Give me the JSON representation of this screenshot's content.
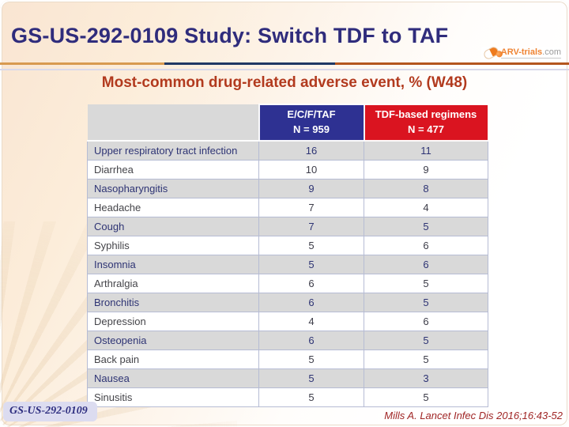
{
  "slide": {
    "title": "GS-US-292-0109 Study: Switch TDF to TAF",
    "subtitle": "Most-common drug-related adverse event, % (W48)",
    "footer_badge": "GS-US-292-0109",
    "citation": "Mills A. Lancet Infec Dis 2016;16:43-52"
  },
  "logo": {
    "name": "ARV-trials",
    "suffix": ".com",
    "icon": "pill-icon"
  },
  "table": {
    "header": {
      "col_event": "",
      "col_ecftaf": {
        "title": "E/C/F/TAF",
        "n": "N = 959"
      },
      "col_tdf": {
        "title": "TDF-based regimens",
        "n": "N = 477"
      }
    },
    "rows": [
      {
        "label": "Upper respiratory tract infection",
        "ecftaf": 16,
        "tdf": 11
      },
      {
        "label": "Diarrhea",
        "ecftaf": 10,
        "tdf": 9
      },
      {
        "label": "Nasopharyngitis",
        "ecftaf": 9,
        "tdf": 8
      },
      {
        "label": "Headache",
        "ecftaf": 7,
        "tdf": 4
      },
      {
        "label": "Cough",
        "ecftaf": 7,
        "tdf": 5
      },
      {
        "label": "Syphilis",
        "ecftaf": 5,
        "tdf": 6
      },
      {
        "label": "Insomnia",
        "ecftaf": 5,
        "tdf": 6
      },
      {
        "label": "Arthralgia",
        "ecftaf": 6,
        "tdf": 5
      },
      {
        "label": "Bronchitis",
        "ecftaf": 6,
        "tdf": 5
      },
      {
        "label": "Depression",
        "ecftaf": 4,
        "tdf": 6
      },
      {
        "label": "Osteopenia",
        "ecftaf": 6,
        "tdf": 5
      },
      {
        "label": "Back pain",
        "ecftaf": 5,
        "tdf": 5
      },
      {
        "label": "Nausea",
        "ecftaf": 5,
        "tdf": 3
      },
      {
        "label": "Sinusitis",
        "ecftaf": 5,
        "tdf": 5
      }
    ]
  },
  "colors": {
    "header_blue": "#2e3192",
    "header_red": "#da1420",
    "row_stripe": "#d9d9d9",
    "title_text": "#2f2c7c",
    "subtitle_text": "#b23a1e",
    "citation_text": "#a02626",
    "divider_orange": "#d89a50",
    "divider_navy": "#1f3864",
    "divider_rust": "#b4561e"
  }
}
